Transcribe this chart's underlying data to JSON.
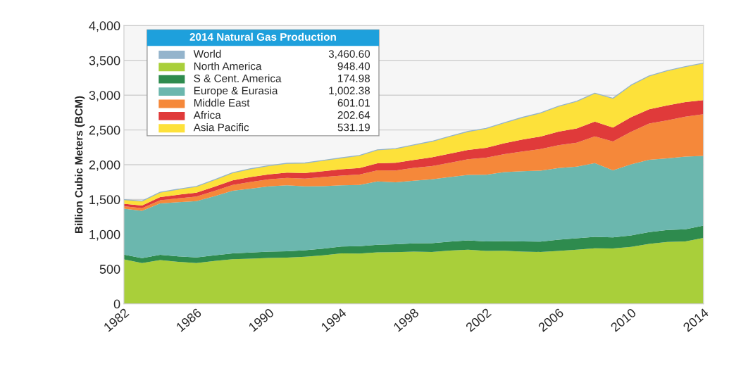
{
  "chart_data": {
    "type": "area",
    "stacked": true,
    "ylabel": "Billion Cubic Meters (BCM)",
    "legend_title": "2014 Natural Gas Production",
    "x": [
      1982,
      1983,
      1984,
      1985,
      1986,
      1987,
      1988,
      1989,
      1990,
      1991,
      1992,
      1993,
      1994,
      1995,
      1996,
      1997,
      1998,
      1999,
      2000,
      2001,
      2002,
      2003,
      2004,
      2005,
      2006,
      2007,
      2008,
      2009,
      2010,
      2011,
      2012,
      2013,
      2014
    ],
    "series": [
      {
        "name": "World",
        "type": "line",
        "color": "#94b4cc",
        "values": [
          1498,
          1477,
          1604,
          1648,
          1688,
          1783,
          1885,
          1942,
          1986,
          2020,
          2025,
          2062,
          2099,
          2133,
          2214,
          2232,
          2284,
          2336,
          2409,
          2478,
          2522,
          2603,
          2681,
          2745,
          2841,
          2912,
          3029,
          2955,
          3144,
          3277,
          3352,
          3410,
          3460.6
        ]
      },
      {
        "name": "North America",
        "color": "#a9cf3a",
        "values": [
          638,
          586,
          629,
          603,
          586,
          615,
          640,
          650,
          659,
          663,
          677,
          697,
          724,
          723,
          739,
          742,
          749,
          746,
          764,
          778,
          759,
          763,
          751,
          745,
          761,
          777,
          797,
          795,
          819,
          862,
          890,
          898,
          948.4
        ]
      },
      {
        "name": "S & Cent. America",
        "color": "#2e8b4e",
        "values": [
          70,
          70,
          75,
          78,
          80,
          83,
          85,
          87,
          90,
          92,
          93,
          95,
          100,
          105,
          110,
          115,
          120,
          125,
          130,
          135,
          138,
          140,
          145,
          150,
          160,
          165,
          165,
          160,
          165,
          170,
          172,
          174,
          174.98
        ]
      },
      {
        "name": "Europe & Eurasia",
        "color": "#6bb7ae",
        "values": [
          660,
          680,
          740,
          780,
          810,
          850,
          900,
          920,
          940,
          950,
          920,
          900,
          880,
          880,
          910,
          890,
          900,
          920,
          930,
          940,
          960,
          990,
          1010,
          1020,
          1030,
          1030,
          1060,
          965,
          1020,
          1040,
          1030,
          1045,
          1002.38
        ]
      },
      {
        "name": "Middle East",
        "color": "#f5883a",
        "values": [
          35,
          38,
          45,
          55,
          65,
          75,
          85,
          95,
          100,
          105,
          110,
          130,
          140,
          150,
          160,
          170,
          185,
          190,
          205,
          225,
          245,
          260,
          285,
          310,
          330,
          345,
          385,
          415,
          470,
          520,
          545,
          575,
          601.01
        ]
      },
      {
        "name": "Africa",
        "color": "#e03a3a",
        "values": [
          35,
          38,
          45,
          52,
          57,
          60,
          65,
          70,
          72,
          75,
          80,
          85,
          90,
          95,
          100,
          110,
          115,
          125,
          130,
          135,
          140,
          155,
          170,
          180,
          195,
          205,
          212,
          200,
          210,
          205,
          215,
          208,
          202.64
        ]
      },
      {
        "name": "Asia Pacific",
        "color": "#fde13a",
        "values": [
          60,
          65,
          70,
          80,
          90,
          100,
          110,
          120,
          125,
          135,
          145,
          155,
          165,
          180,
          195,
          205,
          215,
          230,
          250,
          265,
          280,
          295,
          320,
          340,
          365,
          390,
          410,
          420,
          460,
          480,
          500,
          510,
          531.19
        ]
      }
    ],
    "annotations": [
      "3,460.60",
      "948.40",
      "174.98",
      "1,002.38",
      "601.01",
      "202.64",
      "531.19"
    ],
    "xlim": [
      1982,
      2014
    ],
    "xticks": [
      1982,
      1986,
      1990,
      1994,
      1998,
      2002,
      2006,
      2010,
      2014
    ],
    "ylim": [
      0,
      4000
    ],
    "yticks": [
      0,
      500,
      {
        "value": 1000,
        "label": "1,000"
      },
      {
        "value": 1500,
        "label": "1,500"
      },
      {
        "value": 2000,
        "label": "2,000"
      },
      {
        "value": 2500,
        "label": "2,500"
      },
      {
        "value": 3000,
        "label": "3,000"
      },
      {
        "value": 3500,
        "label": "3,500"
      },
      {
        "value": 4000,
        "label": "4,000"
      }
    ],
    "grid": "y",
    "legend": "top left"
  }
}
